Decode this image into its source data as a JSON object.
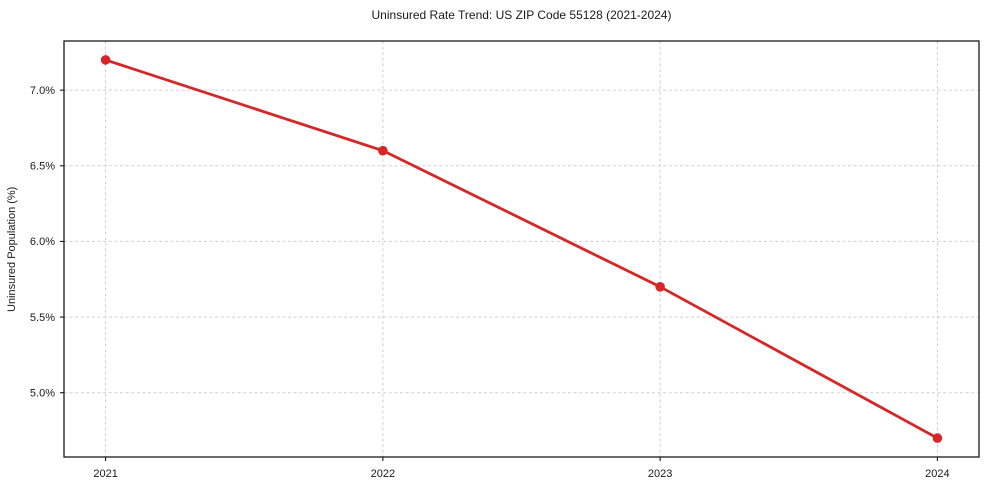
{
  "chart_data": {
    "type": "line",
    "title": "Uninsured Rate Trend: US ZIP Code 55128 (2021-2024)",
    "xlabel": "",
    "ylabel": "Uninsured Population (%)",
    "x": [
      2021,
      2022,
      2023,
      2024
    ],
    "values": [
      7.2,
      6.6,
      5.7,
      4.7
    ],
    "x_tick_labels": [
      "2021",
      "2022",
      "2023",
      "2024"
    ],
    "y_ticks": [
      5.0,
      5.5,
      6.0,
      6.5,
      7.0
    ],
    "y_tick_labels": [
      "5.0%",
      "5.5%",
      "6.0%",
      "6.5%",
      "7.0%"
    ],
    "xlim": [
      2020.85,
      2024.15
    ],
    "ylim": [
      4.575,
      7.325
    ],
    "grid": "both-dashed",
    "legend": "none",
    "line_color": "#d62728",
    "marker": "circle",
    "grid_color": "#cfcfcf",
    "spine_color": "#1a1a1a",
    "text_color": "#1a1a1a",
    "background_color": "#ffffff"
  }
}
